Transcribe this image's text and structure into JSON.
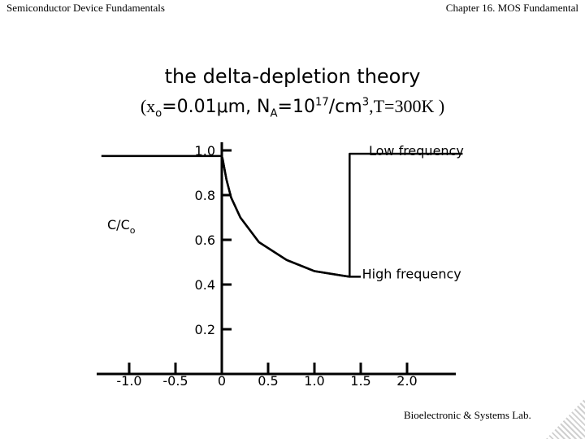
{
  "header": {
    "left": "Semiconductor Device Fundamentals",
    "right": "Chapter 16. MOS Fundamental"
  },
  "title": {
    "line1": "the delta-depletion theory",
    "line2": {
      "open": "(x",
      "sub_o": "o",
      "eq1": "=0.01μm, N",
      "sub_a": "A",
      "eq2": "=10",
      "sup17": "17",
      "unit": "/cm",
      "sup3": "3",
      "temp": ",T=300K )"
    }
  },
  "footer": "Bioelectronic & Systems Lab.",
  "chart_data": {
    "type": "line",
    "ylabel": "C/C",
    "ylabel_sub": "o",
    "x_ticks": [
      {
        "value": -1.0,
        "label": "-1.0"
      },
      {
        "value": -0.5,
        "label": "-0.5"
      },
      {
        "value": 0,
        "label": "0"
      },
      {
        "value": 0.5,
        "label": "0.5"
      },
      {
        "value": 1.0,
        "label": "1.0"
      },
      {
        "value": 1.5,
        "label": "1.5"
      },
      {
        "value": 2.0,
        "label": "2.0"
      }
    ],
    "y_ticks": [
      {
        "value": 1.0,
        "label": "1.0"
      },
      {
        "value": 0.8,
        "label": "0.8"
      },
      {
        "value": 0.6,
        "label": "0.6"
      },
      {
        "value": 0.4,
        "label": "0.4"
      },
      {
        "value": 0.2,
        "label": "0.2"
      }
    ],
    "xlim": [
      -1.3,
      2.6
    ],
    "ylim": [
      0.0,
      1.0
    ],
    "series": [
      {
        "name": "Low frequency",
        "x": [
          -1.3,
          0.0,
          0.01,
          0.05,
          0.1,
          0.2,
          0.4,
          0.7,
          1.0,
          1.3,
          1.38,
          1.38,
          2.6
        ],
        "y": [
          0.975,
          0.975,
          0.96,
          0.87,
          0.79,
          0.7,
          0.59,
          0.51,
          0.46,
          0.44,
          0.435,
          0.985,
          0.985
        ]
      },
      {
        "name": "High frequency",
        "x": [
          0.0,
          0.01,
          0.05,
          0.1,
          0.2,
          0.4,
          0.7,
          1.0,
          1.3,
          1.38,
          1.5
        ],
        "y": [
          0.975,
          0.96,
          0.87,
          0.79,
          0.7,
          0.59,
          0.51,
          0.46,
          0.44,
          0.435,
          0.435
        ]
      }
    ],
    "annotations": [
      {
        "text": "Low frequency",
        "x": 2.1,
        "y": 1.0
      },
      {
        "text": "High frequency",
        "x": 2.05,
        "y": 0.45
      }
    ],
    "grid": false,
    "legend": "none"
  }
}
